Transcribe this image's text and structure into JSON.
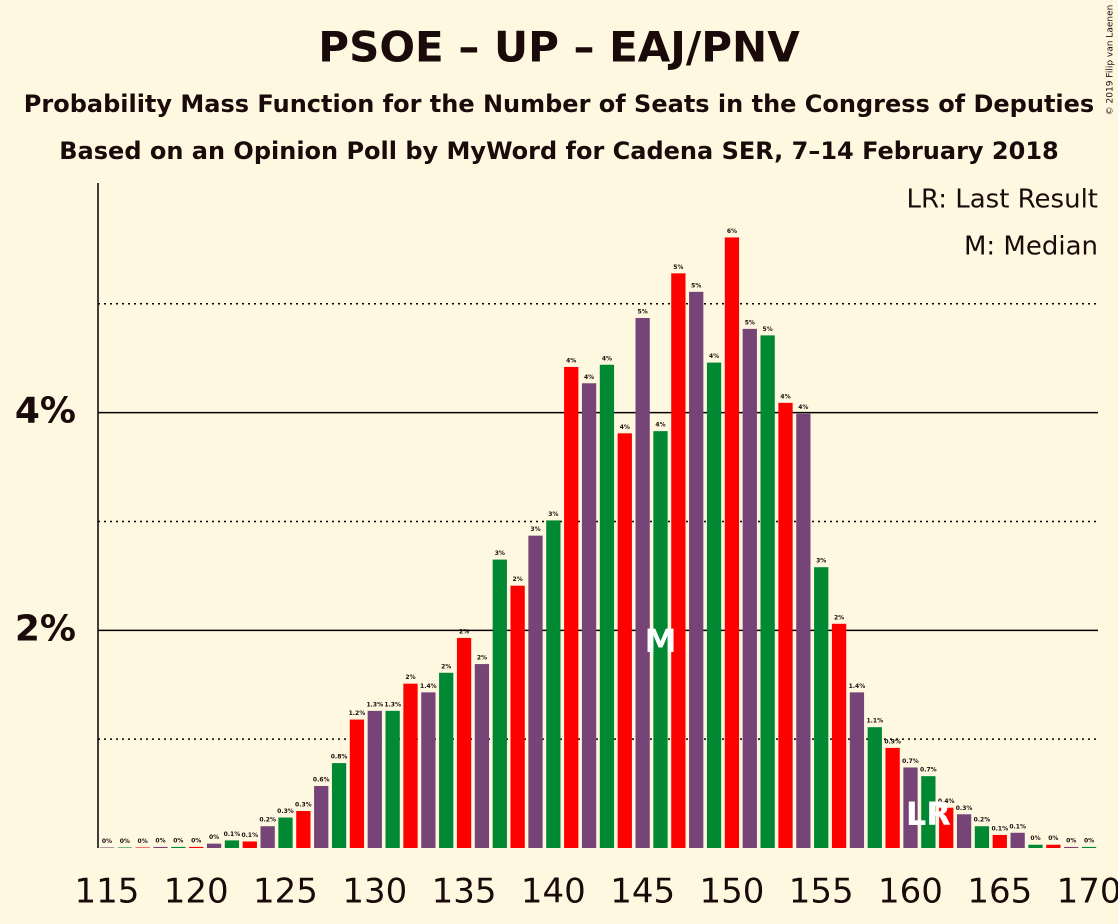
{
  "chart_data": {
    "type": "bar",
    "title": "PSOE – UP – EAJ/PNV",
    "subtitle": "Probability Mass Function for the Number of Seats in the Congress of Deputies",
    "subtitle2": "Based on an Opinion Poll by MyWord for Cadena SER, 7–14 February 2018",
    "legend": [
      "LR: Last Result",
      "M: Median"
    ],
    "credit": "© 2019 Filip van Laenen",
    "palette": [
      "#774477",
      "#008833",
      "#ff0000"
    ],
    "x": [
      115,
      116,
      117,
      118,
      119,
      120,
      121,
      122,
      123,
      124,
      125,
      126,
      127,
      128,
      129,
      130,
      131,
      132,
      133,
      134,
      135,
      136,
      137,
      138,
      139,
      140,
      141,
      142,
      143,
      144,
      145,
      146,
      147,
      148,
      149,
      150,
      151,
      152,
      153,
      154,
      155,
      156,
      157,
      158,
      159,
      160,
      161,
      162,
      163,
      164,
      165,
      166,
      167,
      168,
      169,
      170
    ],
    "values": [
      0.005,
      0.005,
      0.005,
      0.01,
      0.01,
      0.01,
      0.04,
      0.07,
      0.06,
      0.2,
      0.28,
      0.34,
      0.57,
      0.78,
      1.18,
      1.26,
      1.26,
      1.51,
      1.43,
      1.61,
      1.93,
      1.69,
      2.65,
      2.41,
      2.87,
      3.01,
      4.42,
      4.27,
      4.44,
      3.81,
      4.87,
      3.83,
      5.28,
      5.11,
      4.46,
      5.61,
      4.77,
      4.71,
      4.09,
      3.99,
      2.58,
      2.06,
      1.43,
      1.11,
      0.92,
      0.74,
      0.66,
      0.37,
      0.31,
      0.2,
      0.12,
      0.14,
      0.03,
      0.03,
      0.01,
      0.01
    ],
    "value_labels": [
      "0%",
      "0%",
      "0%",
      "0%",
      "0%",
      "0%",
      "0%",
      "0.1%",
      "0.1%",
      "0.2%",
      "0.3%",
      "0.3%",
      "0.6%",
      "0.8%",
      "1.2%",
      "1.3%",
      "1.3%",
      "2%",
      "1.4%",
      "2%",
      "2%",
      "2%",
      "3%",
      "2%",
      "3%",
      "3%",
      "4%",
      "4%",
      "4%",
      "4%",
      "5%",
      "4%",
      "5%",
      "5%",
      "4%",
      "6%",
      "5%",
      "5%",
      "4%",
      "4%",
      "3%",
      "2%",
      "1.4%",
      "1.1%",
      "0.9%",
      "0.7%",
      "0.7%",
      "0.4%",
      "0.3%",
      "0.2%",
      "0.1%",
      "0.1%",
      "0%",
      "0%",
      "0%",
      "0%"
    ],
    "xlim": [
      114.5,
      170.5
    ],
    "xticks": [
      115,
      120,
      125,
      130,
      135,
      140,
      145,
      150,
      155,
      160,
      165,
      170
    ],
    "ylim": [
      0,
      6.11
    ],
    "yticks": [
      {
        "value": 2,
        "label": "2%"
      },
      {
        "value": 4,
        "label": "4%"
      }
    ],
    "minor_yticks": [
      1,
      3,
      5
    ],
    "annotations": [
      {
        "text": "M",
        "x": 146
      },
      {
        "text": "LR",
        "x": 161
      }
    ]
  }
}
